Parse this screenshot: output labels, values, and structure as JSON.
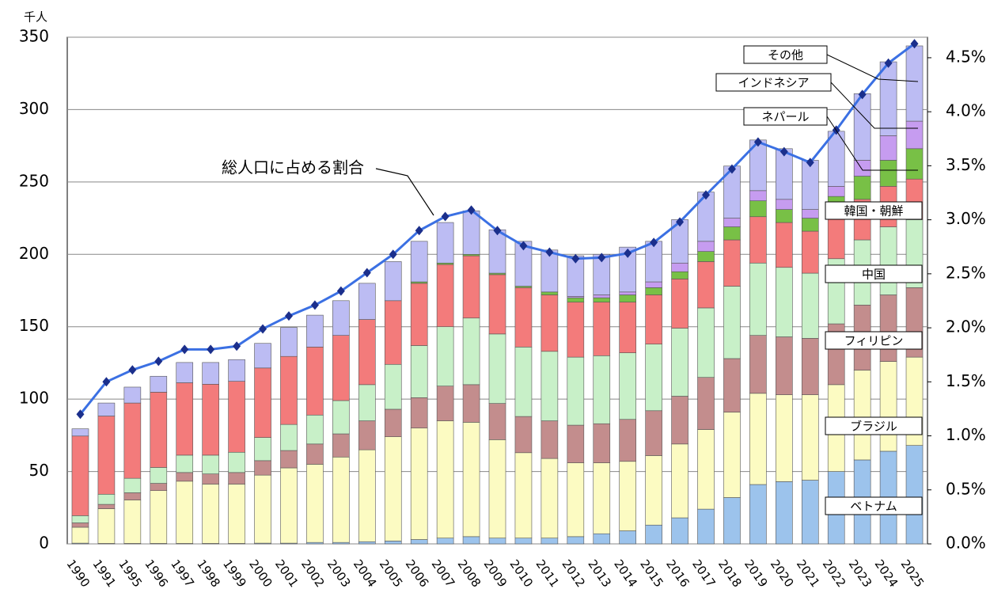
{
  "chart_data": {
    "type": "bar",
    "unit_label": "千人",
    "annotation": "総人口に占める割合",
    "categories": [
      "1990",
      "1991",
      "1995",
      "1996",
      "1997",
      "1998",
      "1999",
      "2000",
      "2001",
      "2002",
      "2003",
      "2004",
      "2005",
      "2006",
      "2007",
      "2008",
      "2009",
      "2010",
      "2011",
      "2012",
      "2013",
      "2014",
      "2015",
      "2016",
      "2017",
      "2018",
      "2019",
      "2020",
      "2021",
      "2022",
      "2023",
      "2024",
      "2025"
    ],
    "ylim": [
      0,
      350
    ],
    "yticks": [
      0,
      50,
      100,
      150,
      200,
      250,
      300,
      350
    ],
    "y2lim": [
      0,
      4.69
    ],
    "y2ticks": [
      {
        "value": 0,
        "label": "0.0%"
      },
      {
        "value": 0.5,
        "label": "0.5%"
      },
      {
        "value": 1,
        "label": "1.0%"
      },
      {
        "value": 1.5,
        "label": "1.5%"
      },
      {
        "value": 2,
        "label": "2.0%"
      },
      {
        "value": 2.5,
        "label": "2.5%"
      },
      {
        "value": 3,
        "label": "3.0%"
      },
      {
        "value": 3.5,
        "label": "3.5%"
      },
      {
        "value": 4,
        "label": "4.0%"
      },
      {
        "value": 4.5,
        "label": "4.5%"
      }
    ],
    "grid": true,
    "stacked": true,
    "series": [
      {
        "name": "ベトナム",
        "color": "#9cc3ec",
        "values": [
          0.5,
          0.3,
          0.3,
          0.3,
          0.3,
          0.3,
          0.3,
          0.5,
          0.5,
          1,
          1,
          1.5,
          2,
          3,
          4,
          5,
          4,
          4,
          4,
          5,
          7,
          9,
          13,
          18,
          24,
          32,
          41,
          43,
          44,
          50,
          58,
          64,
          68
        ]
      },
      {
        "name": "ブラジル",
        "color": "#fcfbc2",
        "values": [
          11,
          24,
          30,
          36.5,
          43,
          41,
          41,
          47,
          52,
          54,
          59,
          63.5,
          72,
          77,
          81,
          79,
          68,
          59,
          55,
          51,
          49,
          48,
          48,
          51,
          55,
          59,
          63,
          60,
          59,
          60,
          62,
          62,
          61
        ]
      },
      {
        "name": "フィリピン",
        "color": "#c38d8d",
        "values": [
          3,
          3,
          5,
          5,
          6,
          7,
          8,
          10,
          12,
          14,
          16,
          20,
          19,
          21,
          24,
          26,
          25,
          25,
          26,
          26,
          27,
          29,
          31,
          33,
          36,
          37,
          40,
          40,
          39,
          42,
          45,
          46,
          48
        ]
      },
      {
        "name": "中国",
        "color": "#c8f0c8",
        "values": [
          5,
          7,
          10,
          11,
          12,
          13,
          14,
          16,
          18,
          20,
          23,
          25,
          31,
          36,
          41,
          46,
          48,
          48,
          48,
          47,
          47,
          46,
          46,
          47,
          48,
          50,
          50,
          48,
          45,
          45,
          45,
          47,
          47
        ]
      },
      {
        "name": "韓国・朝鮮",
        "color": "#f37b7b",
        "values": [
          55,
          54,
          52,
          52,
          50,
          49,
          49,
          48,
          47,
          47,
          45,
          45,
          44,
          43,
          43,
          43,
          41,
          41,
          39,
          38,
          37,
          35,
          34,
          34,
          32,
          32,
          32,
          31,
          29,
          32,
          28,
          28,
          28
        ]
      },
      {
        "name": "ネパール",
        "color": "#78c046",
        "values": [
          0,
          0,
          0,
          0,
          0,
          0,
          0,
          0,
          0,
          0,
          0,
          0,
          0,
          1,
          1,
          1,
          1,
          1,
          2,
          3,
          3,
          5,
          5,
          5,
          7,
          9,
          11,
          9,
          9,
          11,
          16,
          18,
          21
        ]
      },
      {
        "name": "インドネシア",
        "color": "#c69cf0",
        "values": [
          0,
          0,
          0,
          0,
          0,
          0,
          0,
          0,
          0,
          0,
          0,
          0,
          0,
          0,
          0,
          0,
          0,
          0,
          0,
          1,
          2,
          2,
          4,
          6,
          7,
          6,
          7,
          7,
          6,
          7,
          11,
          17,
          19
        ]
      },
      {
        "name": "その他",
        "color": "#bcbcf3",
        "values": [
          5,
          9,
          11,
          11,
          14,
          15,
          15,
          17,
          20,
          22,
          24,
          25,
          27,
          28,
          28,
          30,
          30,
          31,
          29,
          28,
          28,
          31,
          28,
          30,
          34,
          36,
          35,
          35,
          34,
          38,
          46,
          51,
          52
        ]
      },
      {
        "name": "総人口に占める割合",
        "type": "line",
        "axis": "y2",
        "color": "#3b70e3",
        "values": [
          1.2,
          1.5,
          1.61,
          1.69,
          1.8,
          1.8,
          1.83,
          1.99,
          2.11,
          2.21,
          2.34,
          2.51,
          2.68,
          2.9,
          3.03,
          3.09,
          2.9,
          2.76,
          2.7,
          2.64,
          2.65,
          2.69,
          2.79,
          2.98,
          3.23,
          3.47,
          3.72,
          3.63,
          3.53,
          3.83,
          4.16,
          4.45,
          4.63
        ]
      }
    ]
  }
}
